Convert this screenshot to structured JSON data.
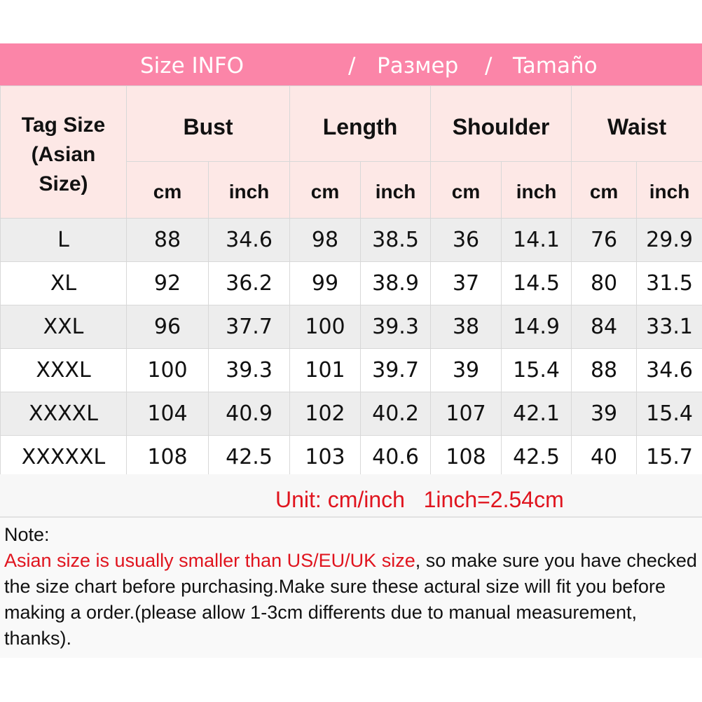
{
  "banner": {
    "title": "Size INFO",
    "sep1": "/",
    "ru": "Размер",
    "sep2": "/",
    "es": "Tamaño"
  },
  "colors": {
    "banner": "#fb85a8",
    "header_bg": "#fde8e6",
    "row_alt": "#ededed",
    "warning": "#e0141e"
  },
  "table": {
    "tag_header": [
      "Tag Size",
      "(Asian",
      "Size)"
    ],
    "groups": [
      "Bust",
      "Length",
      "Shoulder",
      "Waist"
    ],
    "units": [
      "cm",
      "inch",
      "cm",
      "inch",
      "cm",
      "inch",
      "cm",
      "inch"
    ],
    "rows": [
      [
        "L",
        "88",
        "34.6",
        "98",
        "38.5",
        "36",
        "14.1",
        "76",
        "29.9"
      ],
      [
        "XL",
        "92",
        "36.2",
        "99",
        "38.9",
        "37",
        "14.5",
        "80",
        "31.5"
      ],
      [
        "XXL",
        "96",
        "37.7",
        "100",
        "39.3",
        "38",
        "14.9",
        "84",
        "33.1"
      ],
      [
        "XXXL",
        "100",
        "39.3",
        "101",
        "39.7",
        "39",
        "15.4",
        "88",
        "34.6"
      ],
      [
        "XXXXL",
        "104",
        "40.9",
        "102",
        "40.2",
        "107",
        "42.1",
        "39",
        "15.4"
      ],
      [
        "XXXXXL",
        "108",
        "42.5",
        "103",
        "40.6",
        "108",
        "42.5",
        "40",
        "15.7"
      ]
    ]
  },
  "unit_line": "Unit: cm/inch   1inch=2.54cm",
  "note": {
    "label": "Note:",
    "warning": "Asian size is usually smaller than US/EU/UK size",
    "body": ", so make sure you have checked the size chart before purchasing.Make sure these actural size will fit you before making a order.(please allow 1-3cm differents due to manual measurement, thanks)."
  }
}
